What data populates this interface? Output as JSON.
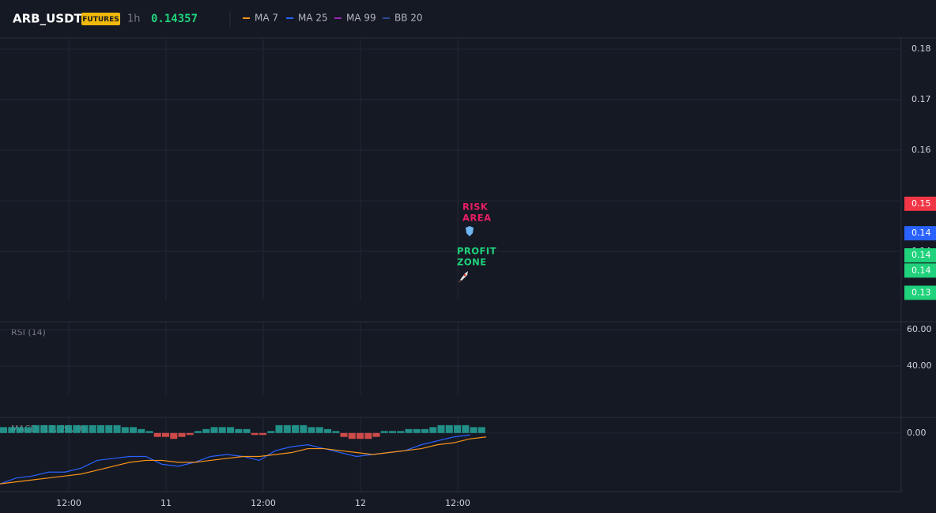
{
  "header": {
    "symbol": "ARB_USDT",
    "badge": "FUTURES",
    "interval": "1h",
    "price": "0.14357",
    "indicators": [
      {
        "name": "MA 7",
        "color": "#f7931a"
      },
      {
        "name": "MA 25",
        "color": "#2962ff"
      },
      {
        "name": "MA 99",
        "color": "#9c27b0"
      },
      {
        "name": "BB 20",
        "color": "#2a4a9a"
      }
    ]
  },
  "price_pane": {
    "ylim": [
      0.1303,
      0.1822
    ],
    "yticks": [
      0.18,
      0.17,
      0.16,
      0.15,
      0.14
    ],
    "levels": [
      {
        "value": 0.1494,
        "label": "0.15",
        "color": "#f23645"
      },
      {
        "value": 0.14357,
        "label": "0.14",
        "color": "#2962ff"
      },
      {
        "value": 0.1392,
        "label": "0.14",
        "color": "#1fd27b"
      },
      {
        "value": 0.1362,
        "label": "0.14",
        "color": "#1fd27b"
      },
      {
        "value": 0.1318,
        "label": "0.13",
        "color": "#1fd27b"
      }
    ],
    "annotations": [
      {
        "lines": [
          "RISK",
          "AREA"
        ],
        "color": "#e91e63"
      },
      {
        "lines": [
          "PROFIT",
          "ZONE"
        ],
        "color": "#1fd27b"
      }
    ]
  },
  "rsi_pane": {
    "title": "RSI (14)",
    "ylim": [
      23.9,
      64.3
    ],
    "yticks": [
      {
        "value": 60,
        "label": "60.00"
      },
      {
        "value": 40,
        "label": "40.00"
      }
    ]
  },
  "macd_pane": {
    "title": "MACD (12, 26, 9)",
    "ylim": [
      -0.003,
      0.0008
    ],
    "yticks": [
      {
        "value": 0,
        "label": "0.00"
      }
    ],
    "histogram": [
      0.0003,
      0.0003,
      0.0003,
      0.0003,
      0.0004,
      0.0004,
      0.0004,
      0.0004,
      0.0004,
      0.0004,
      0.0004,
      0.0004,
      0.0004,
      0.0004,
      0.0004,
      0.0003,
      0.0003,
      0.0002,
      0.0001,
      -0.0002,
      -0.0002,
      -0.0003,
      -0.0002,
      -0.0001,
      0.0001,
      0.0002,
      0.0003,
      0.0003,
      0.0003,
      0.0002,
      0.0002,
      -0.0001,
      -0.0001,
      0.0001,
      0.0004,
      0.0004,
      0.0004,
      0.0004,
      0.0003,
      0.0003,
      0.0002,
      0.0001,
      -0.0002,
      -0.0003,
      -0.0003,
      -0.0003,
      -0.0002,
      0.0001,
      0.0001,
      0.0001,
      0.0002,
      0.0002,
      0.0002,
      0.0003,
      0.0004,
      0.0004,
      0.0004,
      0.0004,
      0.0003,
      0.0003
    ],
    "up_color": "#26a69a",
    "down_color": "#ef5350",
    "series": [
      {
        "color": "#2962ff",
        "values": [
          -0.0026,
          -0.0023,
          -0.0022,
          -0.002,
          -0.002,
          -0.0018,
          -0.0014,
          -0.0013,
          -0.0012,
          -0.0012,
          -0.0016,
          -0.0017,
          -0.0015,
          -0.0012,
          -0.0011,
          -0.0012,
          -0.0014,
          -0.0009,
          -0.0007,
          -0.0006,
          -0.0008,
          -0.001,
          -0.0012,
          -0.0011,
          -0.001,
          -0.0009,
          -0.0006,
          -0.0004,
          -0.0002,
          -0.0001
        ]
      },
      {
        "color": "#f7931a",
        "values": [
          -0.0026,
          -0.0025,
          -0.0024,
          -0.0023,
          -0.0022,
          -0.0021,
          -0.0019,
          -0.0017,
          -0.0015,
          -0.0014,
          -0.0014,
          -0.0015,
          -0.0015,
          -0.0014,
          -0.0013,
          -0.0012,
          -0.0012,
          -0.0011,
          -0.001,
          -0.0008,
          -0.0008,
          -0.0009,
          -0.001,
          -0.0011,
          -0.001,
          -0.0009,
          -0.0008,
          -0.0006,
          -0.0005,
          -0.0003,
          -0.0002
        ]
      }
    ]
  },
  "x_axis": {
    "labels": [
      "12:00",
      "11",
      "12:00",
      "12",
      "12:00"
    ]
  }
}
